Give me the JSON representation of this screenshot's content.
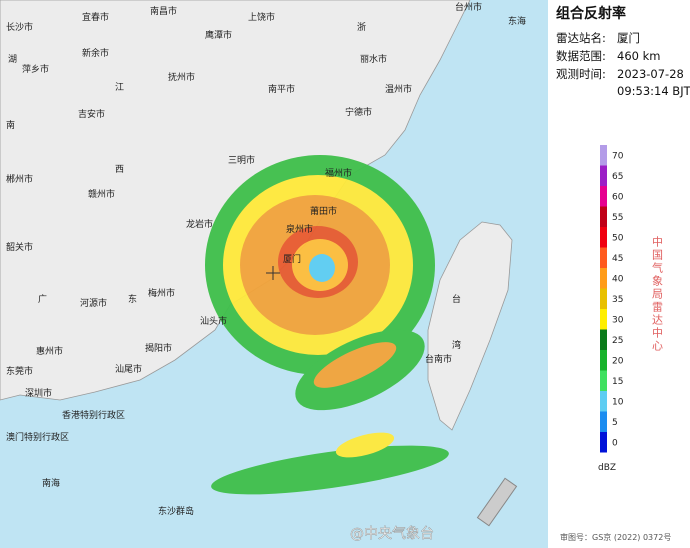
{
  "panel": {
    "title": "组合反射率",
    "rows": [
      {
        "key": "雷达站名:",
        "value": "厦门"
      },
      {
        "key": "数据范围:",
        "value": "460 km"
      },
      {
        "key": "观测时间:",
        "value": "2023-07-28"
      }
    ],
    "time_extra": "09:53:14 BJT"
  },
  "legend": {
    "unit": "dBZ",
    "source": "中国气象局雷达中心",
    "levels": [
      {
        "value": 70,
        "color": "#b39ce8"
      },
      {
        "value": 65,
        "color": "#9b1fc6"
      },
      {
        "value": 60,
        "color": "#e60090"
      },
      {
        "value": 55,
        "color": "#c00018"
      },
      {
        "value": 50,
        "color": "#f00010"
      },
      {
        "value": 45,
        "color": "#ff5a1e"
      },
      {
        "value": 40,
        "color": "#ff9c1a"
      },
      {
        "value": 35,
        "color": "#e8c000"
      },
      {
        "value": 30,
        "color": "#ffee00"
      },
      {
        "value": 25,
        "color": "#0a7a1a"
      },
      {
        "value": 20,
        "color": "#16b22a"
      },
      {
        "value": 15,
        "color": "#3fe060"
      },
      {
        "value": 10,
        "color": "#5ecdf2"
      },
      {
        "value": 5,
        "color": "#1b8cf0"
      },
      {
        "value": 0,
        "color": "#0012d8"
      }
    ]
  },
  "map_labels": [
    "长沙市",
    "宜春市",
    "南昌市",
    "鹰潭市",
    "上饶市",
    "台州市",
    "浙",
    "新余市",
    "萍乡市",
    "湖",
    "江",
    "抚州市",
    "南平市",
    "丽水市",
    "温州市",
    "吉安市",
    "宁德市",
    "南",
    "郴州市",
    "西",
    "三明市",
    "福州市",
    "赣州市",
    "龙岩市",
    "莆田市",
    "泉州市",
    "厦门",
    "韶关市",
    "广",
    "东",
    "梅州市",
    "河源市",
    "汕头市",
    "台",
    "湾",
    "惠州市",
    "揭阳市",
    "汕尾市",
    "台南市",
    "东莞市",
    "深圳市",
    "香港特别行政区",
    "澳门特别行政区",
    "南海",
    "东沙群岛",
    "东海"
  ],
  "watermark": "@中央气象台",
  "approval": "审图号：GS京 (2022) 0372号"
}
